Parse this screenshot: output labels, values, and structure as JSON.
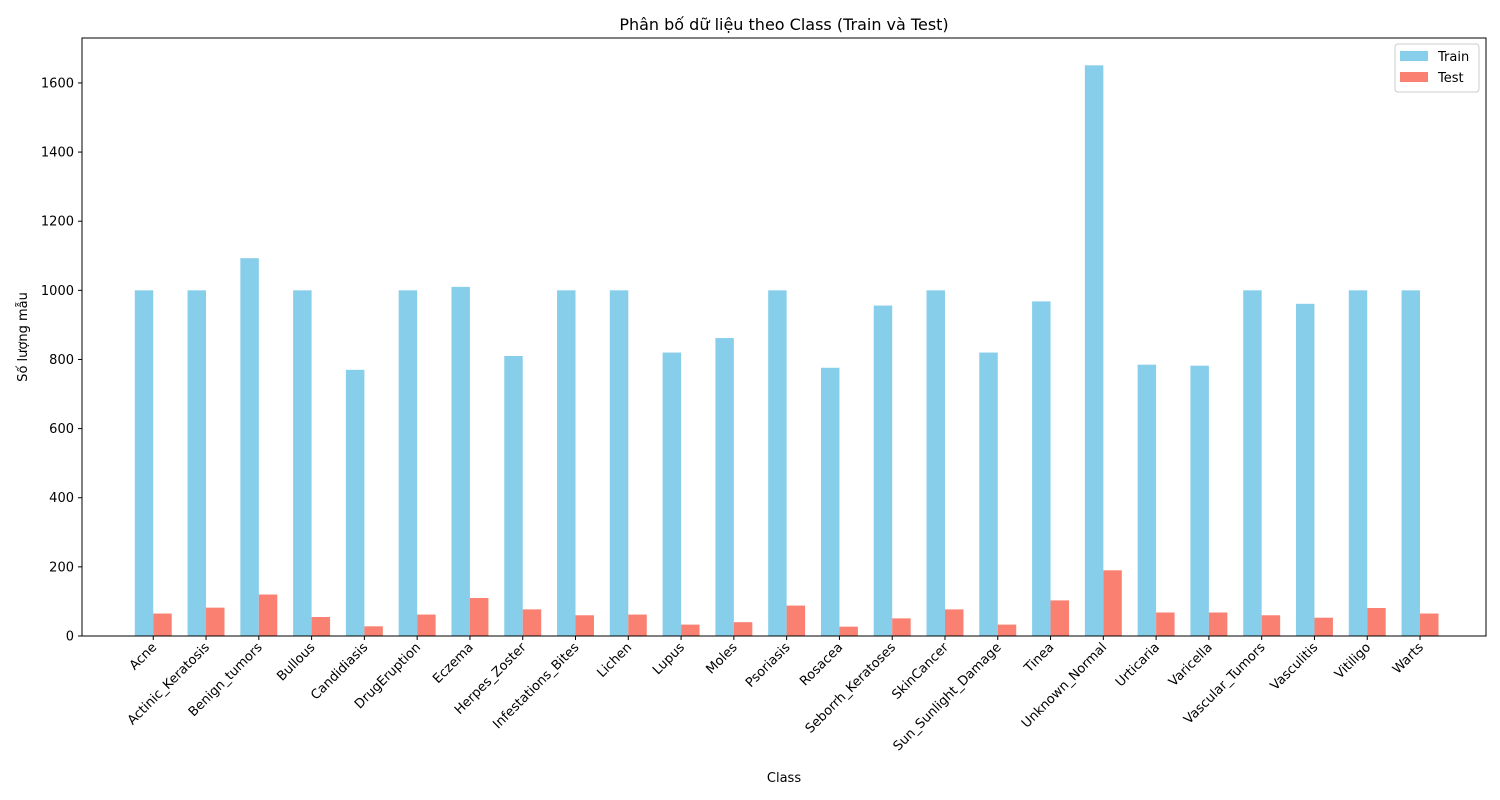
{
  "chart_data": {
    "type": "bar",
    "title": "Phân bố dữ liệu theo Class (Train và Test)",
    "xlabel": "Class",
    "ylabel": "Số lượng mẫu",
    "ylim": [
      0,
      1730
    ],
    "yticks": [
      0,
      200,
      400,
      600,
      800,
      1000,
      1200,
      1400,
      1600
    ],
    "grid": false,
    "legend_position": "top-right",
    "categories": [
      "Acne",
      "Actinic_Keratosis",
      "Benign_tumors",
      "Bullous",
      "Candidiasis",
      "DrugEruption",
      "Eczema",
      "Herpes_Zoster",
      "Infestations_Bites",
      "Lichen",
      "Lupus",
      "Moles",
      "Psoriasis",
      "Rosacea",
      "Seborrh_Keratoses",
      "SkinCancer",
      "Sun_Sunlight_Damage",
      "Tinea",
      "Unknown_Normal",
      "Urticaria",
      "Varicella",
      "Vascular_Tumors",
      "Vasculitis",
      "Vitiligo",
      "Warts"
    ],
    "series": [
      {
        "name": "Train",
        "color": "#87ceeb",
        "values": [
          1000,
          1000,
          1093,
          1000,
          770,
          1000,
          1010,
          810,
          1000,
          1000,
          820,
          862,
          1000,
          776,
          956,
          1000,
          820,
          968,
          1651,
          785,
          782,
          1000,
          961,
          1000,
          1000
        ]
      },
      {
        "name": "Test",
        "color": "#fa8072",
        "values": [
          65,
          82,
          120,
          55,
          28,
          62,
          110,
          77,
          60,
          62,
          33,
          40,
          88,
          27,
          51,
          77,
          33,
          103,
          190,
          68,
          68,
          60,
          53,
          81,
          65
        ]
      }
    ]
  }
}
